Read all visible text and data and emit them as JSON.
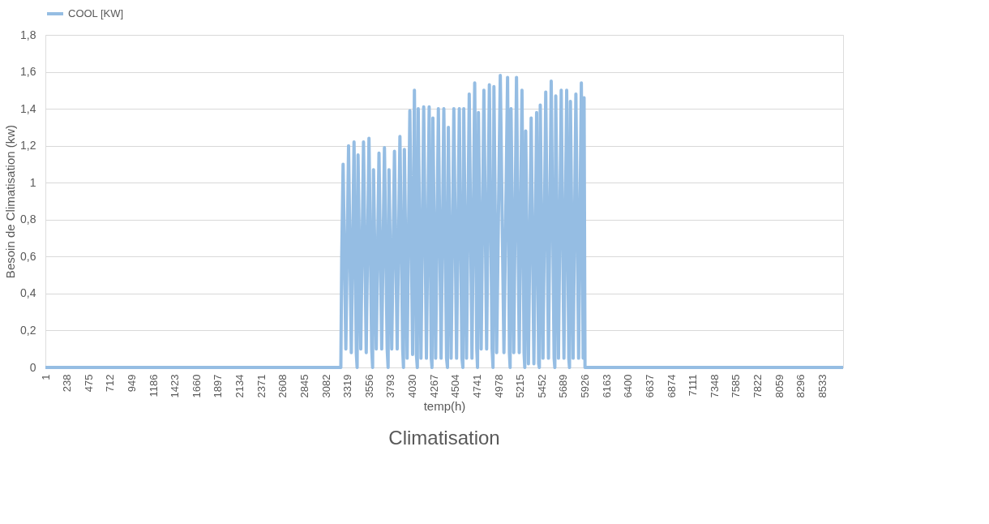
{
  "chart_data": {
    "type": "line",
    "title": "Climatisation",
    "xlabel": "temp(h)",
    "ylabel": "Besoin de Climatisation (kw)",
    "xlim": [
      1,
      8760
    ],
    "xticks": [
      1,
      238,
      475,
      712,
      949,
      1186,
      1423,
      1660,
      1897,
      2134,
      2371,
      2608,
      2845,
      3082,
      3319,
      3556,
      3793,
      4030,
      4267,
      4504,
      4741,
      4978,
      5215,
      5452,
      5689,
      5926,
      6163,
      6400,
      6637,
      6874,
      7111,
      7348,
      7585,
      7822,
      8059,
      8296,
      8533
    ],
    "ylim": [
      0,
      1.8
    ],
    "yticks": [
      0,
      {
        "value": 0.2,
        "label": "0,2"
      },
      {
        "value": 0.4,
        "label": "0,4"
      },
      {
        "value": 0.6,
        "label": "0,6"
      },
      {
        "value": 0.8,
        "label": "0,8"
      },
      1,
      {
        "value": 1.2,
        "label": "1,2"
      },
      {
        "value": 1.4,
        "label": "1,4"
      },
      {
        "value": 1.6,
        "label": "1,6"
      },
      {
        "value": 1.8,
        "label": "1,8"
      }
    ],
    "grid": "y",
    "legend": "top",
    "marker": "none",
    "line_style": "solid",
    "x": [
      1,
      3245,
      3255,
      3270,
      3300,
      3330,
      3360,
      3390,
      3415,
      3424,
      3434,
      3464,
      3494,
      3524,
      3554,
      3584,
      3594,
      3604,
      3634,
      3664,
      3694,
      3724,
      3754,
      3764,
      3774,
      3804,
      3834,
      3864,
      3894,
      3924,
      3933,
      3943,
      3973,
      4003,
      4033,
      4053,
      4075,
      4085,
      4095,
      4125,
      4155,
      4185,
      4215,
      4238,
      4246,
      4256,
      4286,
      4316,
      4346,
      4376,
      4406,
      4416,
      4426,
      4456,
      4486,
      4516,
      4546,
      4575,
      4585,
      4595,
      4625,
      4655,
      4685,
      4715,
      4738,
      4746,
      4756,
      4786,
      4816,
      4846,
      4876,
      4906,
      4916,
      4926,
      4956,
      4996,
      5036,
      5076,
      5096,
      5104,
      5114,
      5144,
      5174,
      5204,
      5234,
      5257,
      5265,
      5275,
      5305,
      5335,
      5365,
      5395,
      5417,
      5425,
      5435,
      5465,
      5495,
      5525,
      5555,
      5587,
      5595,
      5605,
      5635,
      5665,
      5695,
      5725,
      5748,
      5756,
      5766,
      5796,
      5826,
      5856,
      5886,
      5906,
      5916,
      5926,
      8760
    ],
    "series": [
      {
        "name": "COOL [KW]",
        "color": "#95bde3",
        "values": [
          0,
          0,
          0.6,
          1.1,
          0.1,
          1.2,
          0.08,
          1.22,
          0.08,
          0,
          1.15,
          0.1,
          1.22,
          0.08,
          1.24,
          0.1,
          0,
          1.07,
          0.1,
          1.16,
          0.1,
          1.19,
          0.1,
          0,
          1.07,
          0.1,
          1.17,
          0.1,
          1.25,
          0.1,
          0,
          1.18,
          0.05,
          1.39,
          0.07,
          1.5,
          0.07,
          0,
          1.4,
          0.05,
          1.41,
          0.05,
          1.41,
          0.05,
          0,
          1.35,
          0.05,
          1.4,
          0.05,
          1.4,
          0.05,
          0,
          1.3,
          0.05,
          1.4,
          0.05,
          1.4,
          0.05,
          0,
          1.4,
          0.05,
          1.48,
          0.05,
          1.54,
          0.1,
          0,
          1.38,
          0.1,
          1.5,
          0.1,
          1.53,
          0.1,
          0,
          1.52,
          0.08,
          1.58,
          0.08,
          1.57,
          0.08,
          0,
          1.4,
          0.08,
          1.57,
          0.08,
          1.5,
          0.08,
          0,
          1.28,
          0.02,
          1.35,
          0.02,
          1.38,
          0.02,
          0,
          1.42,
          0.05,
          1.49,
          0.05,
          1.55,
          0.05,
          0,
          1.47,
          0.05,
          1.5,
          0.05,
          1.5,
          0.05,
          0,
          1.44,
          0.05,
          1.48,
          0.05,
          1.54,
          0.05,
          1.46,
          0,
          0
        ]
      }
    ]
  }
}
